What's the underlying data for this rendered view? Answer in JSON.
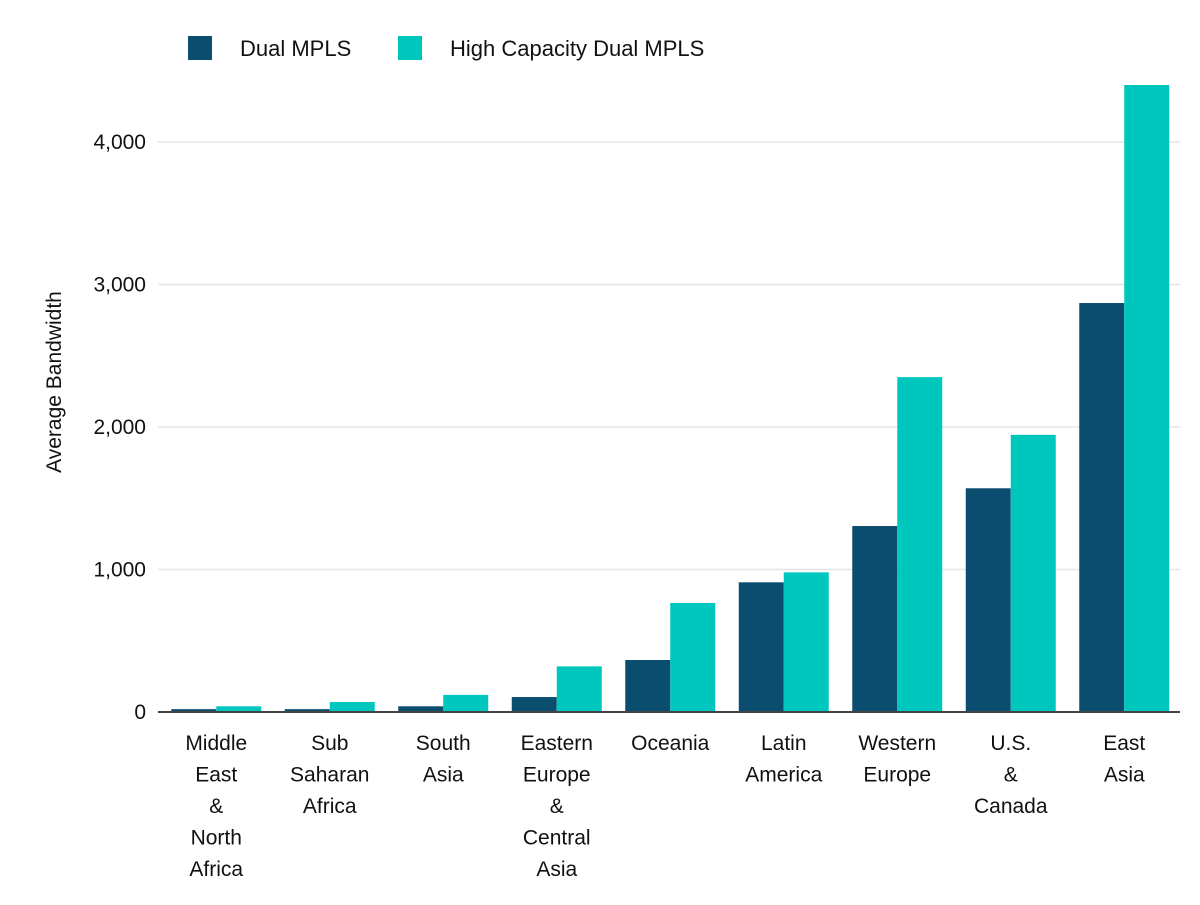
{
  "chart_data": {
    "type": "bar",
    "title": "",
    "xlabel": "",
    "ylabel": "Average Bandwidth",
    "ylim": [
      0,
      4400
    ],
    "yticks": [
      0,
      1000,
      2000,
      3000,
      4000
    ],
    "ytick_labels": [
      "0",
      "1,000",
      "2,000",
      "3,000",
      "4,000"
    ],
    "grid": true,
    "legend_position": "top-left",
    "categories": [
      [
        "Middle",
        "East",
        "&",
        "North",
        "Africa"
      ],
      [
        "Sub",
        "Saharan",
        "Africa"
      ],
      [
        "South",
        "Asia"
      ],
      [
        "Eastern",
        "Europe",
        "&",
        "Central",
        "Asia"
      ],
      [
        "Oceania"
      ],
      [
        "Latin",
        "America"
      ],
      [
        "Western",
        "Europe"
      ],
      [
        "U.S.",
        "&",
        "Canada"
      ],
      [
        "East",
        "Asia"
      ]
    ],
    "series": [
      {
        "name": "Dual MPLS",
        "color": "#0a4d6e",
        "values": [
          20,
          20,
          40,
          105,
          365,
          910,
          1305,
          1570,
          2870
        ]
      },
      {
        "name": "High Capacity Dual MPLS",
        "color": "#00c7bd",
        "values": [
          40,
          70,
          120,
          320,
          765,
          980,
          2350,
          1945,
          4400
        ]
      }
    ]
  }
}
